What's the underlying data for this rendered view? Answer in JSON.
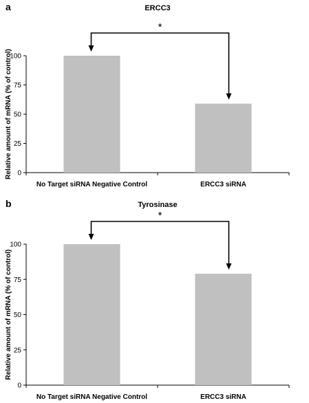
{
  "chart_data": [
    {
      "panel": "a",
      "type": "bar",
      "title": "ERCC3",
      "ylabel": "Relative amount of mRNA (% of control)",
      "xlabel": "",
      "categories": [
        "No Target siRNA Negative Control",
        "ERCC3 siRNA"
      ],
      "values": [
        100,
        59
      ],
      "ylim": [
        0,
        100
      ],
      "yticks": [
        0,
        25,
        50,
        75,
        100
      ],
      "bar_color": "#c0c0c0",
      "grid": false,
      "annotation": "*"
    },
    {
      "panel": "b",
      "type": "bar",
      "title": "Tyrosinase",
      "ylabel": "Relative amount of mRNA (% of control)",
      "xlabel": "",
      "categories": [
        "No Target siRNA Negative Control",
        "ERCC3 siRNA"
      ],
      "values": [
        100,
        79
      ],
      "ylim": [
        0,
        100
      ],
      "yticks": [
        0,
        25,
        50,
        75,
        100
      ],
      "bar_color": "#c0c0c0",
      "grid": false,
      "annotation": "*"
    }
  ]
}
